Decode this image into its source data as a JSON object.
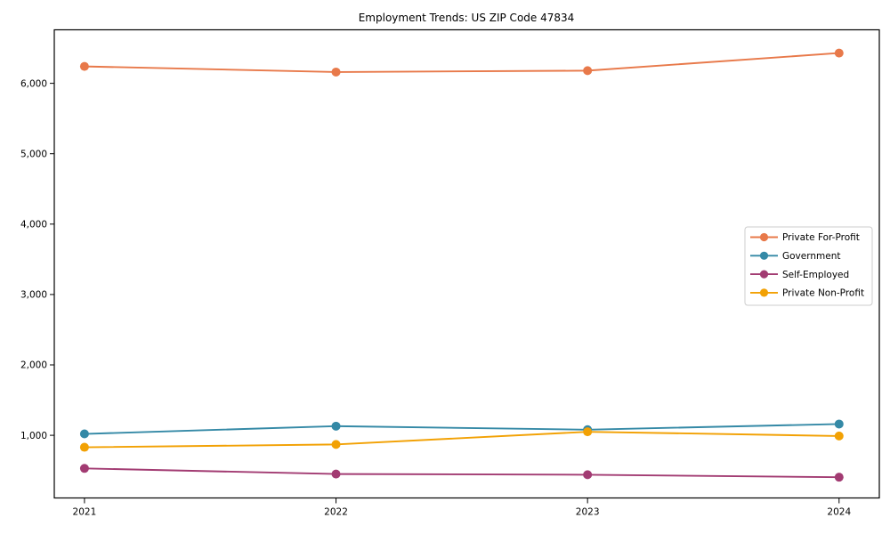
{
  "page": {
    "background": "#ffffff"
  },
  "chart_data": {
    "type": "line",
    "title": "Employment Trends: US ZIP Code 47834",
    "x": [
      2021,
      2022,
      2023,
      2024
    ],
    "xtick_labels": [
      "2021",
      "2022",
      "2023",
      "2024"
    ],
    "series": [
      {
        "name": "Private For-Profit",
        "color": "#e8794a",
        "values": [
          6240,
          6160,
          6180,
          6430
        ]
      },
      {
        "name": "Government",
        "color": "#3489a6",
        "values": [
          1020,
          1130,
          1080,
          1160
        ]
      },
      {
        "name": "Self-Employed",
        "color": "#a23b72",
        "values": [
          530,
          450,
          440,
          405
        ]
      },
      {
        "name": "Private Non-Profit",
        "color": "#f2a104",
        "values": [
          830,
          870,
          1050,
          990
        ]
      }
    ],
    "yticks": [
      1000,
      2000,
      3000,
      4000,
      5000,
      6000
    ],
    "ytick_labels": [
      "1,000",
      "2,000",
      "3,000",
      "4,000",
      "5,000",
      "6,000"
    ],
    "ylim": [
      110,
      6760
    ],
    "xlim": [
      2020.88,
      2024.16
    ],
    "grid": false,
    "legend_position": "center right",
    "axis_color": "#000000",
    "legend_border_color": "#cccccc",
    "plot_background": "#ffffff"
  }
}
